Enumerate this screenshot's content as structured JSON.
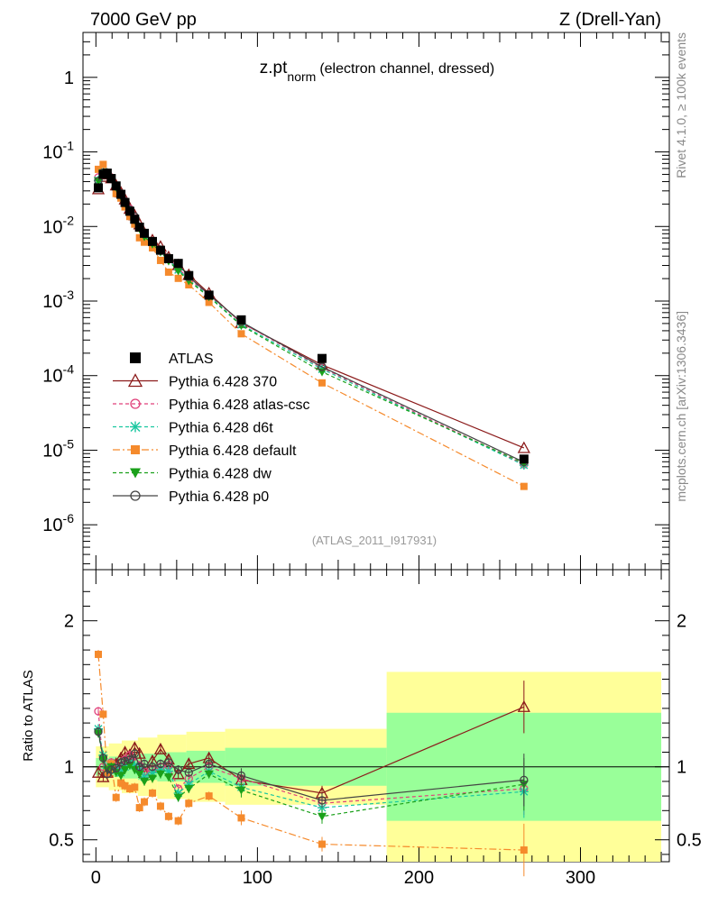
{
  "header": {
    "left": "7000 GeV pp",
    "right": "Z (Drell-Yan)"
  },
  "side_labels": {
    "rivet": "Rivet 4.1.0, ≥ 100k events",
    "mcplots": "mcplots.cern.ch [arXiv:1306.3436]"
  },
  "chart_data": {
    "type": "line",
    "title_main": "z.pt",
    "title_sub": "norm",
    "title_rest": "(electron channel, dressed)",
    "analysis_id": "(ATLAS_2011_I917931)",
    "xlim": [
      -8,
      355
    ],
    "x_ticks": [
      "0",
      "100",
      "200",
      "300"
    ],
    "main": {
      "ylog": true,
      "ylim": [
        2.5e-07,
        4
      ],
      "y_ticks": [
        "1",
        "10^-1",
        "10^-2",
        "10^-3",
        "10^-4",
        "10^-5",
        "10^-6"
      ]
    },
    "ratio": {
      "ylabel": "Ratio to ATLAS",
      "ylim": [
        0.35,
        2.35
      ],
      "y_ticks": [
        "0.5",
        "1",
        "2"
      ]
    },
    "bins_x": [
      1.5,
      4.5,
      7,
      9.5,
      12.5,
      15.5,
      18,
      21,
      24,
      27,
      30,
      35,
      40,
      45,
      51,
      57.5,
      70,
      90,
      140,
      265
    ],
    "band_outer": [
      [
        0,
        8,
        1.14
      ],
      [
        8,
        16,
        1.16
      ],
      [
        16,
        26,
        1.18
      ],
      [
        26,
        38,
        1.2
      ],
      [
        38,
        56,
        1.22
      ],
      [
        56,
        80,
        1.24
      ],
      [
        80,
        180,
        1.26
      ],
      [
        180,
        350,
        1.65
      ]
    ],
    "band_inner": [
      [
        0,
        8,
        1.06
      ],
      [
        8,
        16,
        1.07
      ],
      [
        16,
        26,
        1.08
      ],
      [
        26,
        38,
        1.09
      ],
      [
        38,
        56,
        1.1
      ],
      [
        56,
        80,
        1.11
      ],
      [
        80,
        180,
        1.13
      ],
      [
        180,
        350,
        1.37
      ]
    ],
    "data": {
      "name": "ATLAS",
      "values": [
        0.033,
        0.05,
        0.052,
        0.044,
        0.035,
        0.027,
        0.021,
        0.016,
        0.0125,
        0.0098,
        0.0081,
        0.0063,
        0.0048,
        0.0037,
        0.0032,
        0.0022,
        0.0012,
        0.00056,
        0.00017,
        7.6e-06
      ]
    },
    "series": [
      {
        "name": "Pythia 6.428 370",
        "color": "#8b1a1a",
        "dash": "",
        "marker": "triangle-open",
        "ratio": [
          0.96,
          0.93,
          0.96,
          1.01,
          1.02,
          1.06,
          1.1,
          1.08,
          1.13,
          1.09,
          0.96,
          1.04,
          1.12,
          1.05,
          0.95,
          1.02,
          1.06,
          0.91,
          0.82,
          1.41
        ]
      },
      {
        "name": "Pythia 6.428 atlas-csc",
        "color": "#e0407a",
        "dash": "4,3",
        "marker": "circle-open",
        "ratio": [
          1.38,
          1.0,
          0.96,
          1.03,
          1.0,
          0.98,
          1.05,
          1.08,
          1.03,
          1.01,
          0.97,
          0.98,
          1.0,
          1.01,
          0.85,
          0.92,
          1.0,
          0.92,
          0.75,
          0.85
        ]
      },
      {
        "name": "Pythia 6.428 d6t",
        "color": "#1ac7a0",
        "dash": "4,3",
        "marker": "star",
        "ratio": [
          1.26,
          1.08,
          0.99,
          1.01,
          0.98,
          0.96,
          1.0,
          1.03,
          1.01,
          0.98,
          0.93,
          0.96,
          0.98,
          0.97,
          0.82,
          0.88,
          0.97,
          0.86,
          0.72,
          0.83
        ]
      },
      {
        "name": "Pythia 6.428 default",
        "color": "#f58a2c",
        "dash": "8,3,2,3",
        "marker": "square-filled",
        "ratio": [
          1.77,
          1.36,
          0.96,
          1.02,
          0.79,
          0.89,
          0.87,
          0.85,
          0.86,
          0.72,
          0.76,
          0.82,
          0.73,
          0.66,
          0.63,
          0.75,
          0.8,
          0.65,
          0.47,
          0.43
        ]
      },
      {
        "name": "Pythia 6.428 dw",
        "color": "#1aa01a",
        "dash": "4,3",
        "marker": "triangle-down-filled",
        "ratio": [
          1.23,
          1.05,
          0.98,
          1.0,
          0.96,
          0.94,
          0.98,
          1.01,
          0.98,
          0.95,
          0.9,
          0.92,
          0.95,
          0.93,
          0.79,
          0.85,
          0.95,
          0.84,
          0.66,
          0.88
        ]
      },
      {
        "name": "Pythia 6.428 p0",
        "color": "#444444",
        "dash": "",
        "marker": "circle-open",
        "ratio": [
          1.24,
          1.06,
          0.95,
          0.98,
          0.99,
          1.03,
          1.04,
          1.05,
          1.09,
          1.0,
          1.02,
          1.0,
          1.02,
          1.03,
          0.98,
          0.96,
          1.02,
          0.94,
          0.77,
          0.91
        ]
      }
    ]
  }
}
